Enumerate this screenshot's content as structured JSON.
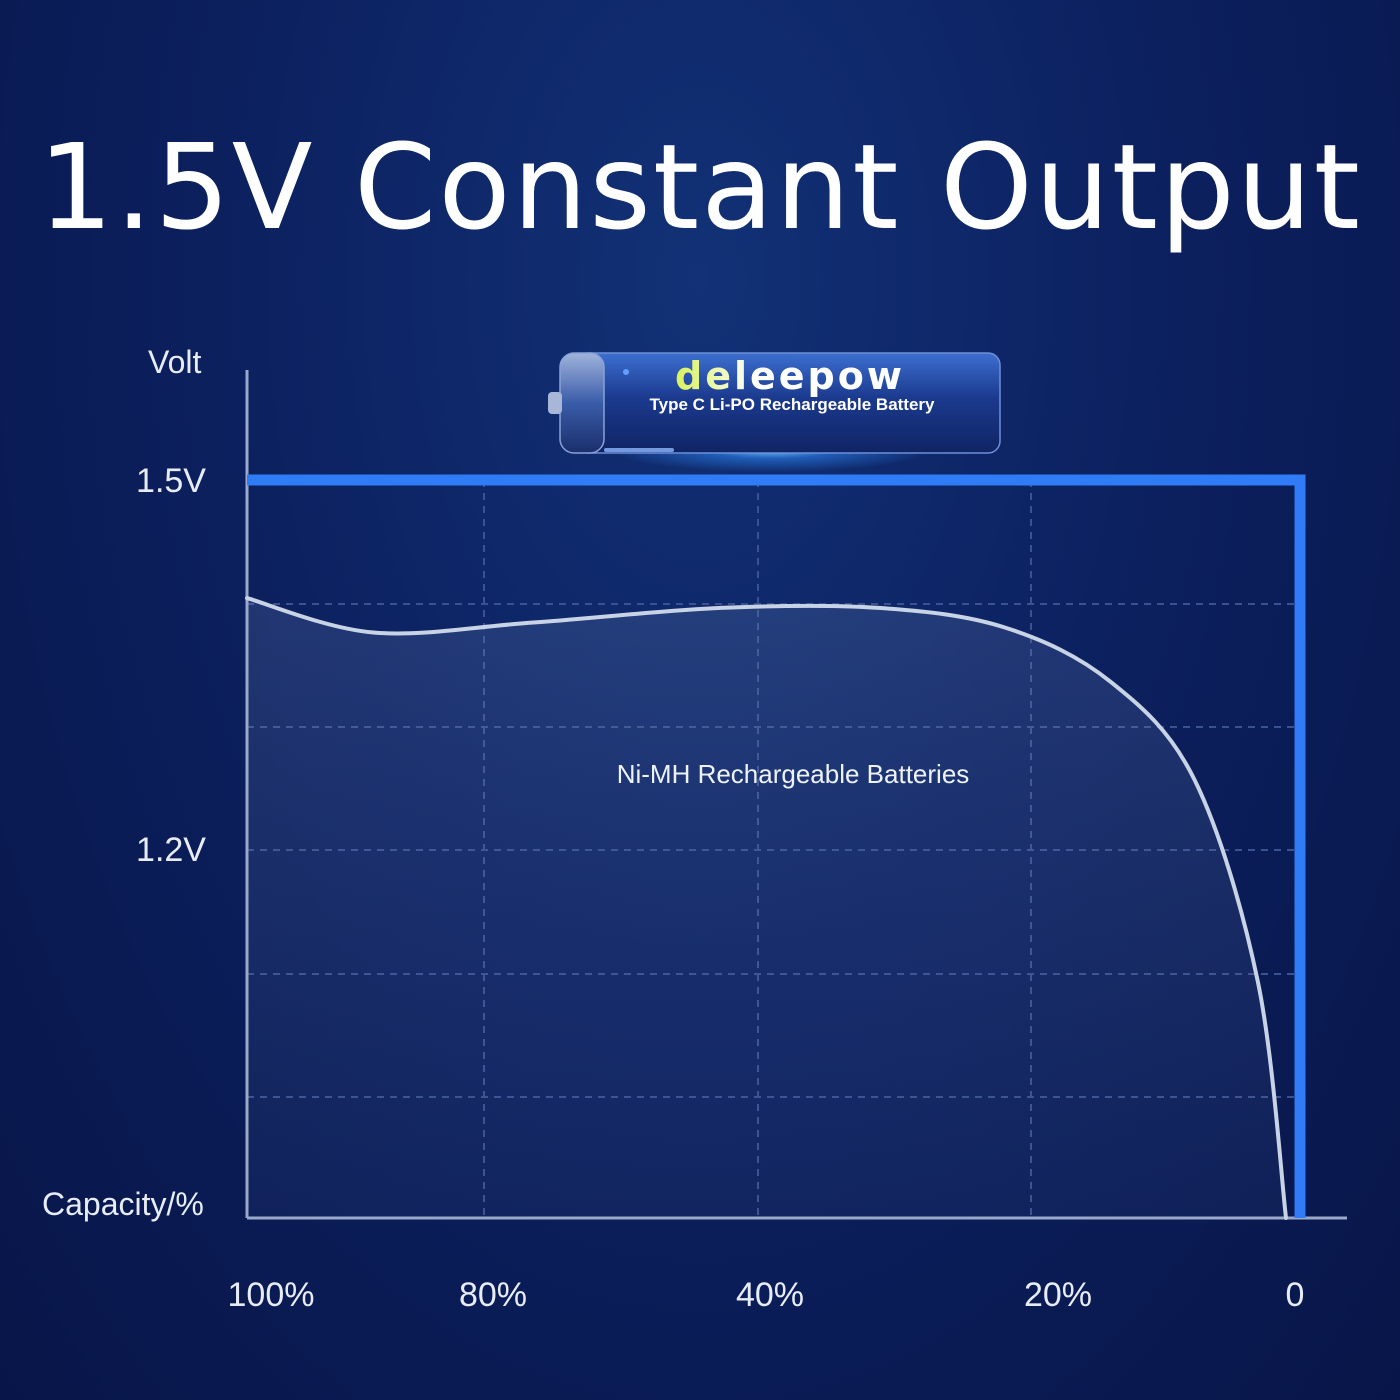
{
  "title": "1.5V Constant Output",
  "battery": {
    "brand": "deleepow",
    "subtitle": "Type C Li-PO Rechargeable Battery"
  },
  "chart_data": {
    "type": "line",
    "y_axis_label": "Volt",
    "x_axis_label": "Capacity/%",
    "x_ticks": [
      "100%",
      "80%",
      "40%",
      "20%",
      "0"
    ],
    "y_ticks": [
      "1.5V",
      "1.2V"
    ],
    "grid": true,
    "series": [
      {
        "name": "Ni-MH Rechargeable Batteries",
        "color": "#c8d3e6",
        "points": [
          [
            100,
            1.26
          ],
          [
            88,
            1.19
          ],
          [
            73,
            1.21
          ],
          [
            55,
            1.24
          ],
          [
            40,
            1.24
          ],
          [
            28,
            1.2
          ],
          [
            18,
            1.09
          ],
          [
            10,
            0.89
          ],
          [
            4,
            0.48
          ],
          [
            0,
            0.0
          ]
        ]
      },
      {
        "name": "",
        "color": "#2f7cf6",
        "points": [
          [
            100,
            1.5
          ],
          [
            0,
            1.5
          ],
          [
            0,
            0.0
          ]
        ]
      }
    ],
    "colors": {
      "li_po_line": "#2f7cf6",
      "nimh_line": "#c8d3e6",
      "grid": "#3a5290",
      "axis": "#9aa9c9"
    }
  }
}
